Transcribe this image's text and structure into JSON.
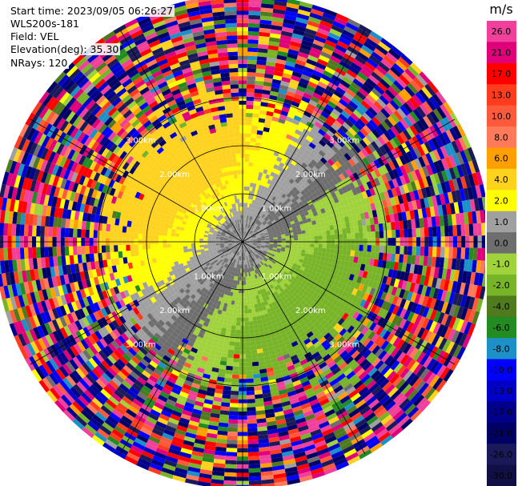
{
  "header": {
    "start_time": "Start time: 2023/09/05 06:26:27",
    "instrument": "WLS200s-181",
    "field": "Field: VEL",
    "elevation": "Elevation(deg): 35.30",
    "nrays": "NRays: 120"
  },
  "colorbar": {
    "unit": "m/s",
    "ticks": [
      "26.0",
      "21.0",
      "17.0",
      "13.0",
      "10.0",
      "8.0",
      "6.0",
      "4.0",
      "2.0",
      "1.0",
      "0.0",
      "-1.0",
      "-2.0",
      "-4.0",
      "-6.0",
      "-8.0",
      "-10.0",
      "-13.0",
      "-17.0",
      "-21.0",
      "-26.0",
      "-30.0"
    ],
    "colors": [
      "#f0409c",
      "#e0007a",
      "#ff0000",
      "#ff3c1e",
      "#ff5a3c",
      "#ff7a5a",
      "#ffa000",
      "#ffd21e",
      "#ffff00",
      "#a0a0a0",
      "#6e6e6e",
      "#a0d23c",
      "#78b428",
      "#507a1e",
      "#228b22",
      "#1e90c8",
      "#0000ff",
      "#0000c8",
      "#00008b",
      "#000064",
      "#1a1a5a",
      "#101046"
    ]
  },
  "chart_data": {
    "type": "heatmap",
    "projection": "polar PPI (plan position indicator)",
    "field": "VEL",
    "units": "m/s",
    "nrays": 120,
    "elevation_deg": 35.3,
    "range_ring_labels": [
      "1.00km",
      "2.00km",
      "3.00km"
    ],
    "range_rings_km": [
      1,
      2,
      3
    ],
    "max_range_km": 5.1,
    "center_pattern": "near-zero velocities (grey) near radar, positive (yellow) to north-west, negative (green) to south-east, noisy multicolor beyond ~3 km",
    "colorscale_range": [
      -30,
      26
    ]
  }
}
